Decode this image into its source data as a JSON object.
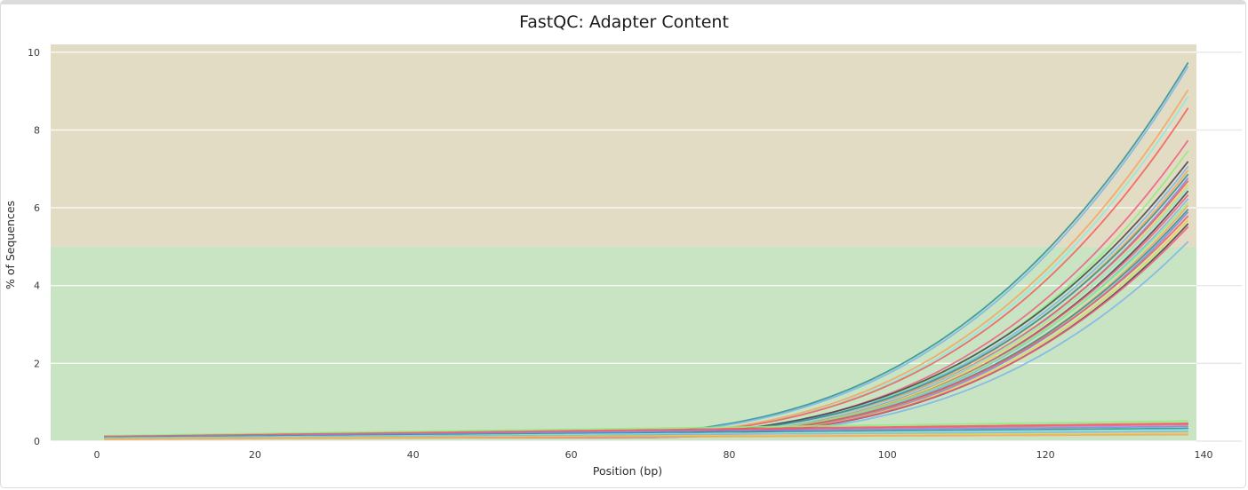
{
  "title": "FastQC: Adapter Content",
  "chart_data": {
    "type": "line",
    "title": "FastQC: Adapter Content",
    "xlabel": "Position (bp)",
    "ylabel": "% of Sequences",
    "x_ticks": [
      0,
      20,
      40,
      60,
      80,
      100,
      120,
      140
    ],
    "y_ticks": [
      0,
      2,
      4,
      6,
      8,
      10
    ],
    "xlim": [
      -6,
      145
    ],
    "ylim": [
      0,
      10.2
    ],
    "x_data_range_bp": [
      1,
      138
    ],
    "grid": true,
    "legend": false,
    "bands": [
      {
        "name": "pass-zone",
        "from": 0,
        "to": 5,
        "color": "#c8e4c3"
      },
      {
        "name": "warn-zone",
        "from": 5,
        "to": 10.2,
        "color": "#e2dcc4"
      }
    ],
    "series_model": "rise: y = baseline + (end - baseline) * max(0,(x - rise_start)/(138 - rise_start))^3 ; flat: linear baseline->end over 1..138",
    "series": [
      {
        "shape": "rise",
        "color": "#2b908f",
        "baseline_pct": 0.12,
        "rise_start_bp": 52,
        "end_pct": 9.72
      },
      {
        "shape": "rise",
        "color": "#7cb5ec",
        "baseline_pct": 0.12,
        "rise_start_bp": 53,
        "end_pct": 9.62
      },
      {
        "shape": "rise",
        "color": "#f7a35c",
        "baseline_pct": 0.11,
        "rise_start_bp": 55,
        "end_pct": 9.02
      },
      {
        "shape": "rise",
        "color": "#91e8e1",
        "baseline_pct": 0.11,
        "rise_start_bp": 56,
        "end_pct": 8.85
      },
      {
        "shape": "rise",
        "color": "#f45b5b",
        "baseline_pct": 0.12,
        "rise_start_bp": 56,
        "end_pct": 8.55
      },
      {
        "shape": "rise",
        "color": "#f15c80",
        "baseline_pct": 0.1,
        "rise_start_bp": 58,
        "end_pct": 7.72
      },
      {
        "shape": "rise",
        "color": "#90ed7d",
        "baseline_pct": 0.1,
        "rise_start_bp": 59,
        "end_pct": 7.45
      },
      {
        "shape": "rise",
        "color": "#434348",
        "baseline_pct": 0.12,
        "rise_start_bp": 57,
        "end_pct": 7.18
      },
      {
        "shape": "rise",
        "color": "#7cb5ec",
        "baseline_pct": 0.11,
        "rise_start_bp": 58,
        "end_pct": 7.05
      },
      {
        "shape": "rise",
        "color": "#f7a35c",
        "baseline_pct": 0.1,
        "rise_start_bp": 59,
        "end_pct": 6.95
      },
      {
        "shape": "rise",
        "color": "#2b908f",
        "baseline_pct": 0.12,
        "rise_start_bp": 58,
        "end_pct": 6.85
      },
      {
        "shape": "rise",
        "color": "#8085e9",
        "baseline_pct": 0.1,
        "rise_start_bp": 60,
        "end_pct": 6.75
      },
      {
        "shape": "rise",
        "color": "#f45b5b",
        "baseline_pct": 0.11,
        "rise_start_bp": 59,
        "end_pct": 6.68
      },
      {
        "shape": "rise",
        "color": "#e4d354",
        "baseline_pct": 0.09,
        "rise_start_bp": 60,
        "end_pct": 6.58
      },
      {
        "shape": "rise",
        "color": "#91e8e1",
        "baseline_pct": 0.1,
        "rise_start_bp": 58,
        "end_pct": 6.5
      },
      {
        "shape": "rise",
        "color": "#434348",
        "baseline_pct": 0.11,
        "rise_start_bp": 61,
        "end_pct": 6.42
      },
      {
        "shape": "rise",
        "color": "#f15c80",
        "baseline_pct": 0.1,
        "rise_start_bp": 60,
        "end_pct": 6.32
      },
      {
        "shape": "rise",
        "color": "#7cb5ec",
        "baseline_pct": 0.1,
        "rise_start_bp": 61,
        "end_pct": 6.22
      },
      {
        "shape": "rise",
        "color": "#90ed7d",
        "baseline_pct": 0.09,
        "rise_start_bp": 59,
        "end_pct": 6.12
      },
      {
        "shape": "rise",
        "color": "#f7a35c",
        "baseline_pct": 0.1,
        "rise_start_bp": 62,
        "end_pct": 6.05
      },
      {
        "shape": "rise",
        "color": "#2b908f",
        "baseline_pct": 0.11,
        "rise_start_bp": 61,
        "end_pct": 5.95
      },
      {
        "shape": "rise",
        "color": "#8085e9",
        "baseline_pct": 0.09,
        "rise_start_bp": 62,
        "end_pct": 5.88
      },
      {
        "shape": "rise",
        "color": "#f45b5b",
        "baseline_pct": 0.1,
        "rise_start_bp": 60,
        "end_pct": 5.78
      },
      {
        "shape": "rise",
        "color": "#e4d354",
        "baseline_pct": 0.09,
        "rise_start_bp": 62,
        "end_pct": 5.68
      },
      {
        "shape": "rise",
        "color": "#434348",
        "baseline_pct": 0.1,
        "rise_start_bp": 63,
        "end_pct": 5.58
      },
      {
        "shape": "rise",
        "color": "#f15c80",
        "baseline_pct": 0.09,
        "rise_start_bp": 62,
        "end_pct": 5.5
      },
      {
        "shape": "rise",
        "color": "#7cb5ec",
        "baseline_pct": 0.1,
        "rise_start_bp": 64,
        "end_pct": 5.12
      },
      {
        "shape": "flat",
        "color": "#90ed7d",
        "baseline_pct": 0.14,
        "end_pct": 0.52
      },
      {
        "shape": "flat",
        "color": "#f45b5b",
        "baseline_pct": 0.12,
        "end_pct": 0.46
      },
      {
        "shape": "flat",
        "color": "#f15c80",
        "baseline_pct": 0.11,
        "end_pct": 0.43
      },
      {
        "shape": "flat",
        "color": "#8085e9",
        "baseline_pct": 0.1,
        "end_pct": 0.38
      },
      {
        "shape": "flat",
        "color": "#2b908f",
        "baseline_pct": 0.09,
        "end_pct": 0.33
      },
      {
        "shape": "flat",
        "color": "#91e8e1",
        "baseline_pct": 0.08,
        "end_pct": 0.29
      },
      {
        "shape": "flat",
        "color": "#7cb5ec",
        "baseline_pct": 0.07,
        "end_pct": 0.25
      },
      {
        "shape": "flat",
        "color": "#e4d354",
        "baseline_pct": 0.06,
        "end_pct": 0.21
      },
      {
        "shape": "flat",
        "color": "#f7a35c",
        "baseline_pct": 0.05,
        "end_pct": 0.17
      }
    ]
  },
  "colors": {
    "band_pass": "#c8e4c3",
    "band_warn": "#e2dcc4",
    "gridline_on_band": "rgba(255,255,255,0.85)",
    "gridline_on_white": "#e7e7e7",
    "border": "#dcdcdc",
    "title_text": "#1a1a1a",
    "tick_text": "#3b3b3b"
  }
}
